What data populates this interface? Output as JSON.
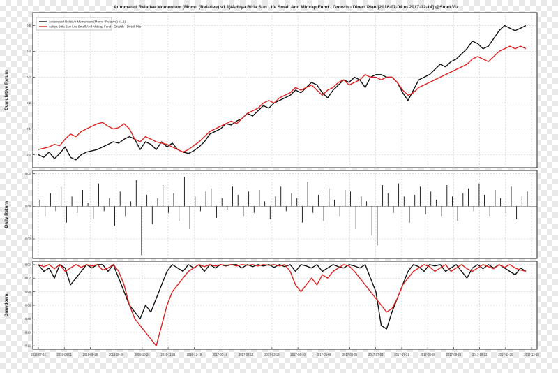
{
  "chart_data": [
    {
      "type": "line",
      "panel": "cumulative",
      "title": "Automated Relative Momentum (Momo (Relative) v1.1)/Aditya Birla Sun Life Small And Midcap Fund - Growth - Direct Plan [2016-07-04 to 2017-12-14] @StockViz",
      "ylabel": "Cumulative Return",
      "ylim": [
        -0.05,
        0.55
      ],
      "yticks": [
        "0.0",
        "0.1",
        "0.2",
        "0.3",
        "0.4",
        "0.5"
      ],
      "yticks_values": [
        0.0,
        0.1,
        0.2,
        0.3,
        0.4,
        0.5
      ],
      "grid": true,
      "legend_position": "top-left",
      "series": [
        {
          "name": "Automated Relative Momentum (Momo (Relative) v1.1)",
          "color": "#111111",
          "values": [
            0.0,
            -0.01,
            0.01,
            -0.015,
            0.005,
            0.03,
            -0.01,
            -0.02,
            0.0,
            0.01,
            0.015,
            0.02,
            0.03,
            0.04,
            0.05,
            0.045,
            0.06,
            0.07,
            0.06,
            0.02,
            0.05,
            0.04,
            0.02,
            0.05,
            0.03,
            0.045,
            0.02,
            0.01,
            0.005,
            0.015,
            0.03,
            0.05,
            0.08,
            0.09,
            0.1,
            0.12,
            0.115,
            0.13,
            0.14,
            0.16,
            0.15,
            0.17,
            0.19,
            0.18,
            0.2,
            0.21,
            0.22,
            0.23,
            0.25,
            0.24,
            0.26,
            0.28,
            0.27,
            0.24,
            0.22,
            0.25,
            0.27,
            0.29,
            0.28,
            0.3,
            0.29,
            0.26,
            0.3,
            0.31,
            0.31,
            0.3,
            0.3,
            0.28,
            0.24,
            0.21,
            0.25,
            0.29,
            0.3,
            0.31,
            0.33,
            0.35,
            0.34,
            0.36,
            0.37,
            0.39,
            0.41,
            0.44,
            0.43,
            0.41,
            0.42,
            0.45,
            0.48,
            0.5,
            0.49,
            0.48,
            0.49,
            0.5
          ]
        },
        {
          "name": "Aditya Birla Sun Life Small And Midcap Fund - Growth - Direct Plan",
          "color": "#dd2222",
          "values": [
            0.02,
            0.025,
            0.03,
            0.04,
            0.035,
            0.06,
            0.08,
            0.07,
            0.09,
            0.1,
            0.11,
            0.12,
            0.125,
            0.11,
            0.1,
            0.105,
            0.12,
            0.1,
            0.06,
            0.05,
            0.07,
            0.06,
            0.05,
            0.045,
            0.04,
            0.03,
            0.02,
            0.01,
            0.02,
            0.035,
            0.05,
            0.07,
            0.09,
            0.1,
            0.11,
            0.12,
            0.13,
            0.12,
            0.14,
            0.16,
            0.17,
            0.18,
            0.2,
            0.21,
            0.2,
            0.22,
            0.23,
            0.24,
            0.26,
            0.25,
            0.26,
            0.27,
            0.25,
            0.23,
            0.25,
            0.26,
            0.28,
            0.29,
            0.27,
            0.28,
            0.29,
            0.31,
            0.3,
            0.3,
            0.29,
            0.3,
            0.3,
            0.28,
            0.25,
            0.23,
            0.24,
            0.26,
            0.27,
            0.28,
            0.29,
            0.3,
            0.31,
            0.32,
            0.33,
            0.34,
            0.35,
            0.37,
            0.38,
            0.37,
            0.36,
            0.38,
            0.4,
            0.41,
            0.42,
            0.41,
            0.42,
            0.41
          ]
        }
      ]
    },
    {
      "type": "bar",
      "panel": "daily",
      "ylabel": "Daily Return",
      "ylim": [
        -0.032,
        0.022
      ],
      "yticks": [
        "0.02",
        "0.00",
        "-0.02"
      ],
      "yticks_values": [
        0.02,
        0.0,
        -0.02
      ],
      "grid": true,
      "series": [
        {
          "name": "",
          "color": "#111111",
          "values": [
            0.004,
            -0.006,
            0.008,
            -0.003,
            0.012,
            -0.01,
            0.006,
            -0.004,
            0.01,
            0.002,
            -0.008,
            0.014,
            -0.003,
            0.005,
            -0.012,
            0.009,
            -0.006,
            0.003,
            0.016,
            -0.03,
            0.007,
            -0.011,
            0.005,
            0.013,
            -0.004,
            0.008,
            -0.009,
            0.018,
            -0.014,
            0.006,
            -0.003,
            0.009,
            0.011,
            -0.007,
            0.005,
            -0.002,
            0.012,
            0.007,
            -0.006,
            0.009,
            -0.004,
            0.01,
            0.003,
            -0.008,
            0.006,
            0.012,
            -0.003,
            0.008,
            0.005,
            -0.01,
            0.015,
            -0.004,
            0.007,
            -0.009,
            0.011,
            0.004,
            -0.006,
            0.01,
            0.009,
            -0.014,
            0.006,
            0.003,
            -0.018,
            -0.024,
            0.013,
            0.008,
            -0.004,
            0.014,
            0.006,
            -0.01,
            0.007,
            0.012,
            -0.005,
            0.009,
            0.004,
            -0.006,
            0.013,
            0.006,
            -0.009,
            0.008,
            0.011,
            -0.003,
            0.014,
            0.007,
            -0.006,
            0.01,
            0.005,
            -0.004,
            0.012,
            -0.008,
            0.006,
            0.009
          ]
        }
      ]
    },
    {
      "type": "line",
      "panel": "drawdown",
      "ylabel": "Drawdown",
      "ylim": [
        -0.125,
        0.005
      ],
      "yticks": [
        "0.00",
        "-0.02",
        "-0.04",
        "-0.06",
        "-0.08",
        "-0.10",
        "-0.12"
      ],
      "yticks_values": [
        0.0,
        -0.02,
        -0.04,
        -0.06,
        -0.08,
        -0.1,
        -0.12
      ],
      "grid": true,
      "x_tick_labels": [
        "2016-07-04",
        "2016-08-01",
        "2016-08-29",
        "2016-09-26",
        "2016-10-24",
        "2016-11-21",
        "2016-12-19",
        "2017-01-16",
        "2017-02-13",
        "2017-03-13",
        "2017-04-10",
        "2017-05-08",
        "2017-06-05",
        "2017-07-03",
        "2017-07-31",
        "2017-08-28",
        "2017-09-25",
        "2017-10-23",
        "2017-11-20",
        "2017-12-18"
      ],
      "series": [
        {
          "name": "Automated Relative Momentum (Momo (Relative) v1.1)",
          "color": "#111111",
          "values": [
            0.0,
            -0.01,
            -0.005,
            -0.02,
            0.0,
            -0.005,
            -0.03,
            -0.02,
            -0.01,
            0.0,
            -0.005,
            0.0,
            0.0,
            -0.01,
            0.0,
            -0.02,
            -0.04,
            -0.06,
            -0.07,
            -0.08,
            -0.06,
            -0.07,
            -0.05,
            -0.03,
            -0.01,
            0.0,
            -0.005,
            -0.01,
            0.0,
            -0.005,
            0.0,
            -0.01,
            0.0,
            -0.005,
            0.0,
            -0.002,
            0.0,
            0.0,
            -0.005,
            0.0,
            -0.003,
            0.0,
            -0.002,
            0.0,
            -0.004,
            0.0,
            -0.003,
            0.0,
            -0.01,
            0.0,
            -0.002,
            -0.005,
            0.0,
            -0.01,
            -0.005,
            0.0,
            -0.003,
            -0.005,
            0.0,
            -0.002,
            -0.005,
            0.0,
            -0.02,
            -0.04,
            -0.09,
            -0.095,
            -0.07,
            -0.05,
            -0.03,
            -0.01,
            0.0,
            -0.003,
            -0.01,
            0.0,
            -0.002,
            0.0,
            -0.01,
            -0.005,
            0.0,
            -0.01,
            -0.02,
            -0.005,
            0.0,
            -0.006,
            0.0,
            -0.005,
            0.0,
            -0.005,
            -0.01,
            -0.015,
            -0.005,
            -0.01
          ]
        },
        {
          "name": "Aditya Birla Sun Life Small And Midcap Fund - Growth - Direct Plan",
          "color": "#dd2222",
          "values": [
            0.0,
            -0.003,
            0.0,
            -0.006,
            0.0,
            -0.01,
            -0.005,
            0.0,
            -0.004,
            0.0,
            -0.002,
            0.0,
            -0.008,
            -0.005,
            0.0,
            -0.01,
            -0.03,
            -0.06,
            -0.08,
            -0.09,
            -0.1,
            -0.11,
            -0.12,
            -0.09,
            -0.06,
            -0.04,
            -0.03,
            -0.02,
            -0.01,
            -0.005,
            0.0,
            -0.003,
            0.0,
            -0.002,
            0.0,
            -0.001,
            0.0,
            -0.002,
            0.0,
            -0.001,
            0.0,
            -0.002,
            0.0,
            -0.001,
            0.0,
            -0.002,
            0.0,
            -0.01,
            -0.03,
            -0.04,
            -0.03,
            -0.02,
            -0.03,
            -0.015,
            -0.02,
            -0.01,
            -0.005,
            0.0,
            -0.002,
            -0.01,
            -0.02,
            -0.03,
            -0.04,
            -0.05,
            -0.06,
            -0.07,
            -0.065,
            -0.05,
            -0.03,
            -0.02,
            -0.01,
            -0.005,
            0.0,
            -0.003,
            -0.01,
            -0.005,
            0.0,
            -0.01,
            -0.005,
            0.0,
            -0.006,
            -0.01,
            -0.005,
            0.0,
            -0.003,
            -0.006,
            0.0,
            -0.004,
            0.0,
            -0.005,
            -0.008,
            -0.01
          ]
        }
      ]
    }
  ]
}
